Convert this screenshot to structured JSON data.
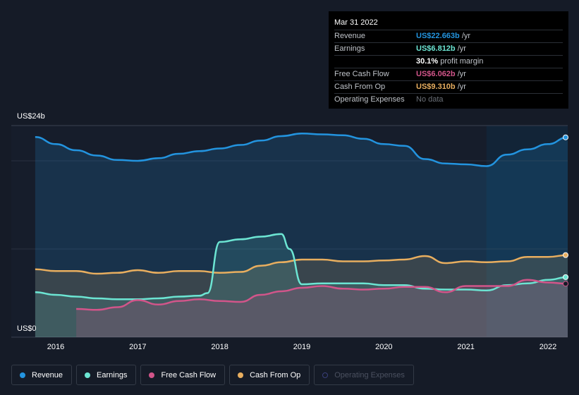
{
  "tooltip": {
    "date": "Mar 31 2022",
    "rows": [
      {
        "label": "Revenue",
        "value": "US$22.663b",
        "unit": "/yr",
        "color": "#2394df"
      },
      {
        "label": "Earnings",
        "value": "US$6.812b",
        "unit": "/yr",
        "color": "#6ce5d3"
      },
      {
        "label": "",
        "value": "30.1%",
        "unit": "profit margin",
        "color": "#ffffff"
      },
      {
        "label": "Free Cash Flow",
        "value": "US$6.062b",
        "unit": "/yr",
        "color": "#d2558a"
      },
      {
        "label": "Cash From Op",
        "value": "US$9.310b",
        "unit": "/yr",
        "color": "#e8ae5f"
      },
      {
        "label": "Operating Expenses",
        "value": "No data",
        "unit": "",
        "color": "#6b7078"
      }
    ]
  },
  "axis": {
    "y_top": "US$24b",
    "y_bottom": "US$0"
  },
  "legend": [
    {
      "label": "Revenue",
      "color": "#2394df",
      "enabled": true
    },
    {
      "label": "Earnings",
      "color": "#6ce5d3",
      "enabled": true
    },
    {
      "label": "Free Cash Flow",
      "color": "#d2558a",
      "enabled": true
    },
    {
      "label": "Cash From Op",
      "color": "#e8ae5f",
      "enabled": true
    },
    {
      "label": "Operating Expenses",
      "color": "#3a3f7a",
      "enabled": false
    }
  ],
  "chart_data": {
    "type": "area",
    "ylim": [
      0,
      24
    ],
    "y_unit": "US$ billions",
    "x_ticks": [
      "2016",
      "2017",
      "2018",
      "2019",
      "2020",
      "2021",
      "2022"
    ],
    "highlight_start": 2021.25,
    "series": [
      {
        "name": "Revenue",
        "color": "#2394df",
        "x": [
          2015.75,
          2016.0,
          2016.25,
          2016.5,
          2016.75,
          2017.0,
          2017.25,
          2017.5,
          2017.75,
          2018.0,
          2018.25,
          2018.5,
          2018.75,
          2019.0,
          2019.25,
          2019.5,
          2019.75,
          2020.0,
          2020.25,
          2020.5,
          2020.75,
          2021.0,
          2021.25,
          2021.5,
          2021.75,
          2022.0,
          2022.25
        ],
        "values": [
          22.7,
          21.9,
          21.2,
          20.6,
          20.1,
          20.0,
          20.3,
          20.8,
          21.1,
          21.4,
          21.8,
          22.3,
          22.8,
          23.1,
          23.0,
          22.9,
          22.5,
          21.9,
          21.7,
          20.2,
          19.7,
          19.6,
          19.4,
          20.7,
          21.3,
          21.9,
          22.663
        ]
      },
      {
        "name": "Cash From Op",
        "color": "#e8ae5f",
        "x": [
          2015.75,
          2016.0,
          2016.25,
          2016.5,
          2016.75,
          2017.0,
          2017.25,
          2017.5,
          2017.75,
          2018.0,
          2018.25,
          2018.5,
          2018.75,
          2019.0,
          2019.25,
          2019.5,
          2019.75,
          2020.0,
          2020.25,
          2020.5,
          2020.75,
          2021.0,
          2021.25,
          2021.5,
          2021.75,
          2022.0,
          2022.25
        ],
        "values": [
          7.7,
          7.5,
          7.5,
          7.2,
          7.3,
          7.6,
          7.3,
          7.5,
          7.5,
          7.3,
          7.4,
          8.1,
          8.5,
          8.8,
          8.8,
          8.6,
          8.6,
          8.7,
          8.8,
          9.2,
          8.4,
          8.6,
          8.5,
          8.6,
          9.1,
          9.1,
          9.31
        ]
      },
      {
        "name": "Earnings",
        "color": "#6ce5d3",
        "x": [
          2015.75,
          2016.0,
          2016.25,
          2016.5,
          2016.75,
          2017.0,
          2017.25,
          2017.5,
          2017.75,
          2017.85,
          2018.0,
          2018.25,
          2018.5,
          2018.75,
          2018.85,
          2019.0,
          2019.25,
          2019.5,
          2019.75,
          2020.0,
          2020.25,
          2020.5,
          2020.75,
          2021.0,
          2021.25,
          2021.5,
          2021.75,
          2022.0,
          2022.25
        ],
        "values": [
          5.1,
          4.8,
          4.6,
          4.4,
          4.3,
          4.3,
          4.4,
          4.6,
          4.7,
          5.0,
          10.8,
          11.1,
          11.4,
          11.7,
          10.0,
          6.0,
          6.1,
          6.1,
          6.1,
          5.9,
          5.9,
          5.5,
          5.4,
          5.4,
          5.3,
          5.9,
          6.1,
          6.5,
          6.812
        ]
      },
      {
        "name": "Free Cash Flow",
        "color": "#d2558a",
        "x": [
          2016.25,
          2016.5,
          2016.75,
          2017.0,
          2017.25,
          2017.5,
          2017.75,
          2018.0,
          2018.25,
          2018.5,
          2018.75,
          2019.0,
          2019.25,
          2019.5,
          2019.75,
          2020.0,
          2020.25,
          2020.5,
          2020.75,
          2021.0,
          2021.25,
          2021.5,
          2021.75,
          2022.0,
          2022.25
        ],
        "values": [
          3.2,
          3.1,
          3.4,
          4.2,
          3.7,
          4.1,
          4.3,
          4.1,
          4.0,
          4.8,
          5.2,
          5.6,
          5.8,
          5.5,
          5.4,
          5.5,
          5.7,
          5.7,
          5.1,
          5.8,
          5.8,
          5.8,
          6.5,
          6.2,
          6.062
        ]
      }
    ]
  }
}
